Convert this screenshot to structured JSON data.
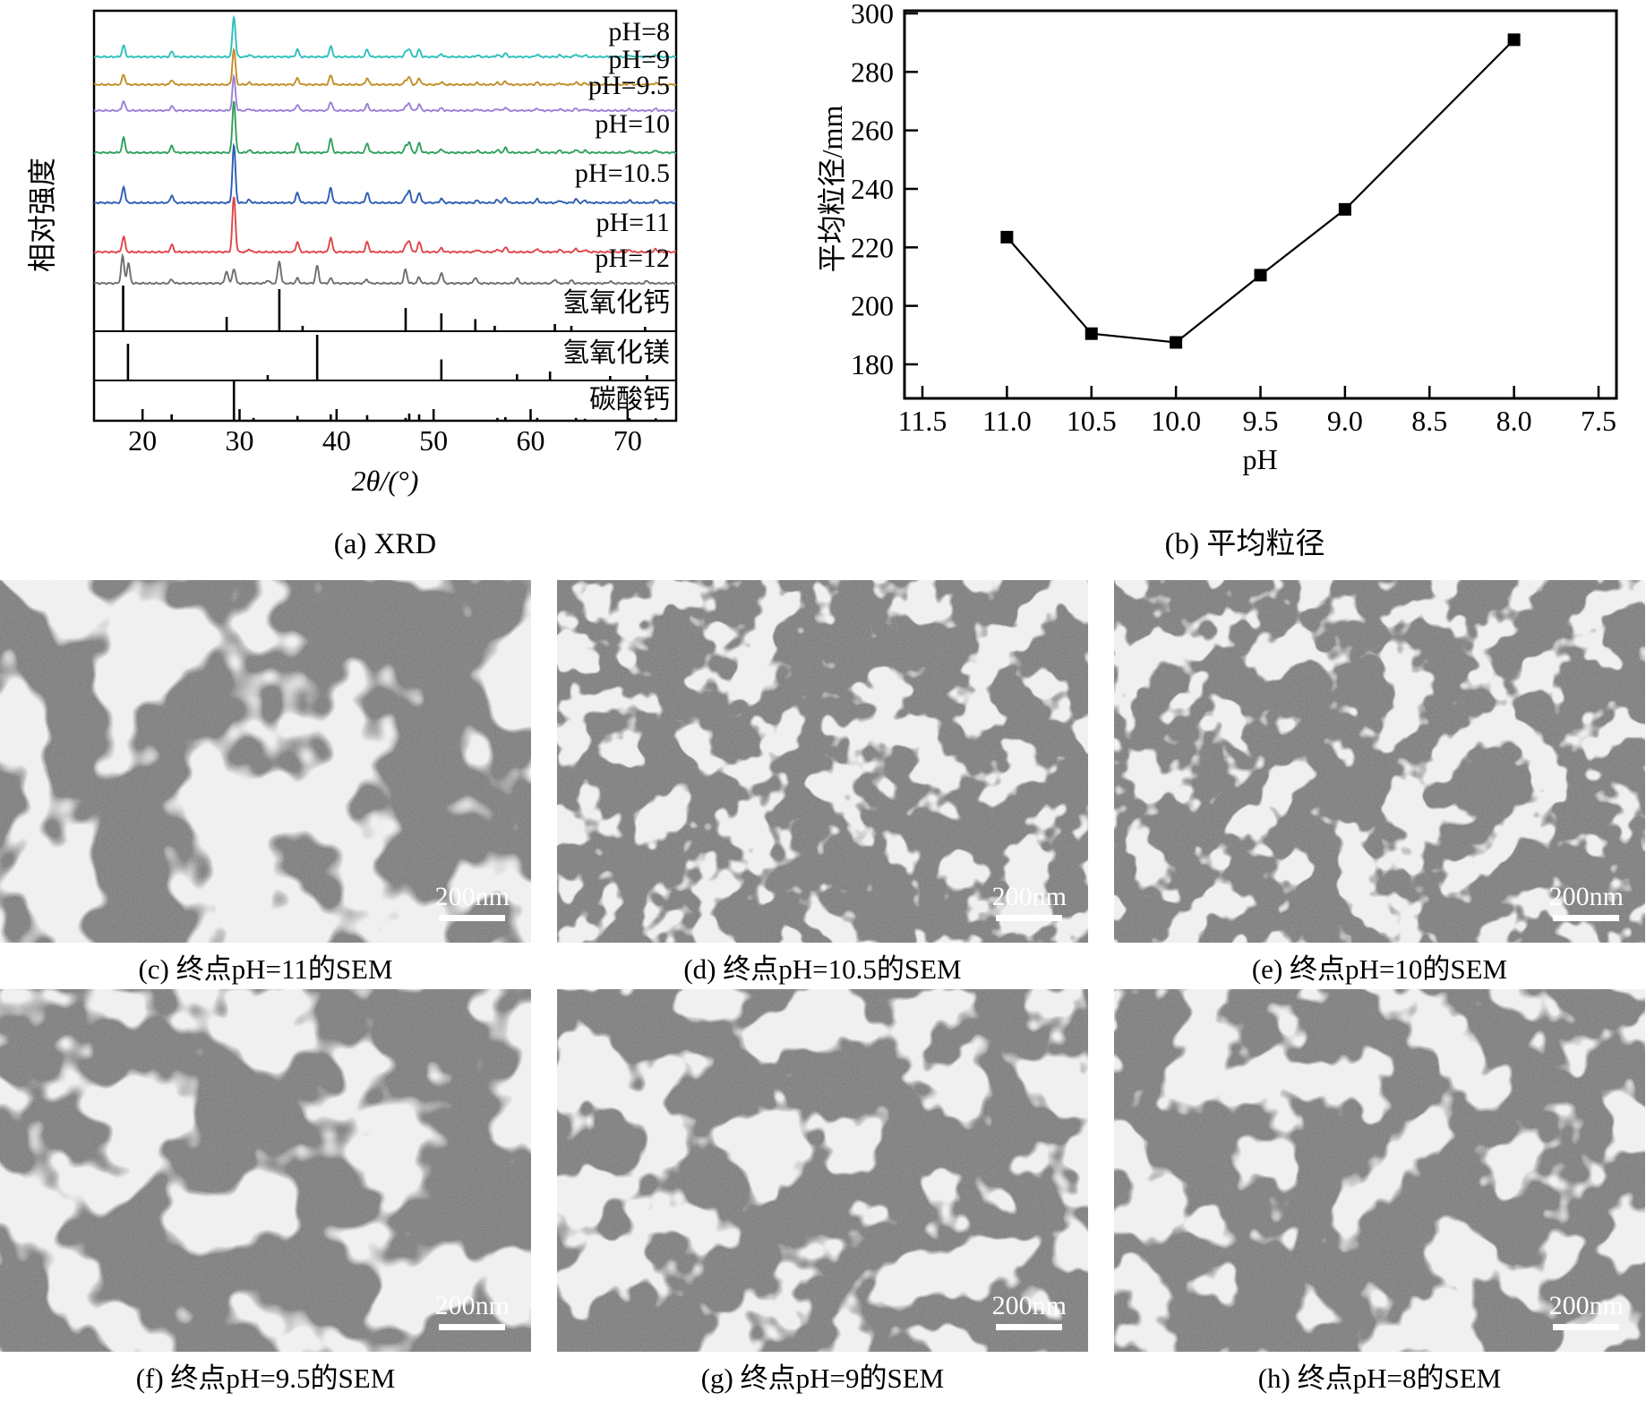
{
  "panels": {
    "a_caption": "(a) XRD",
    "b_caption": "(b) 平均粒径"
  },
  "chart_data": [
    {
      "type": "line",
      "name": "xrd-stacked-patterns",
      "title": "(a) XRD",
      "xlabel": "2θ/(°)",
      "ylabel": "相对强度",
      "xlim": [
        15,
        75
      ],
      "xticks": [
        20,
        30,
        40,
        50,
        60,
        70
      ],
      "grid": false,
      "legend_position": "right-inline",
      "common_peaks": [
        [
          18.05,
          0.28
        ],
        [
          23.02,
          0.13
        ],
        [
          29.42,
          1.0
        ],
        [
          31.0,
          0.05
        ],
        [
          35.97,
          0.18
        ],
        [
          39.4,
          0.26
        ],
        [
          43.15,
          0.18
        ],
        [
          47.12,
          0.12
        ],
        [
          47.49,
          0.2
        ],
        [
          48.51,
          0.18
        ],
        [
          50.8,
          0.07
        ],
        [
          54.5,
          0.04
        ],
        [
          56.58,
          0.05
        ],
        [
          57.4,
          0.09
        ],
        [
          60.68,
          0.06
        ],
        [
          63.0,
          0.04
        ],
        [
          64.68,
          0.06
        ],
        [
          65.6,
          0.04
        ],
        [
          70.2,
          0.04
        ],
        [
          72.9,
          0.05
        ]
      ],
      "series": [
        {
          "name": "pH=8",
          "color": "#2fbfbc"
        },
        {
          "name": "pH=9",
          "color": "#c28f28"
        },
        {
          "name": "pH=9.5",
          "color": "#9d80d6"
        },
        {
          "name": "pH=10",
          "color": "#33a05f"
        },
        {
          "name": "pH=10.5",
          "color": "#2d5fb3"
        },
        {
          "name": "pH=11",
          "color": "#e0454b"
        },
        {
          "name": "pH=12",
          "color": "#6e6e6e",
          "peaks": [
            [
              17.95,
              0.55
            ],
            [
              18.55,
              0.4
            ],
            [
              23.0,
              0.08
            ],
            [
              28.67,
              0.25
            ],
            [
              29.42,
              0.3
            ],
            [
              32.9,
              0.06
            ],
            [
              34.1,
              0.45
            ],
            [
              35.97,
              0.1
            ],
            [
              38.0,
              0.35
            ],
            [
              39.4,
              0.1
            ],
            [
              43.1,
              0.08
            ],
            [
              47.1,
              0.28
            ],
            [
              48.5,
              0.12
            ],
            [
              50.8,
              0.22
            ],
            [
              54.3,
              0.12
            ],
            [
              58.6,
              0.1
            ],
            [
              62.5,
              0.08
            ],
            [
              64.2,
              0.06
            ],
            [
              68.2,
              0.04
            ],
            [
              72.0,
              0.05
            ]
          ]
        }
      ],
      "reference_patterns": [
        {
          "name": "氢氧化钙",
          "sticks": [
            [
              18.0,
              1.0
            ],
            [
              28.67,
              0.3
            ],
            [
              34.1,
              0.92
            ],
            [
              36.5,
              0.1
            ],
            [
              47.12,
              0.5
            ],
            [
              50.8,
              0.38
            ],
            [
              54.3,
              0.25
            ],
            [
              56.3,
              0.1
            ],
            [
              62.5,
              0.14
            ],
            [
              64.2,
              0.1
            ],
            [
              71.8,
              0.08
            ]
          ]
        },
        {
          "name": "氢氧化镁",
          "sticks": [
            [
              18.5,
              0.8
            ],
            [
              32.9,
              0.1
            ],
            [
              38.0,
              1.0
            ],
            [
              50.8,
              0.45
            ],
            [
              58.6,
              0.12
            ],
            [
              62.0,
              0.18
            ],
            [
              68.2,
              0.08
            ],
            [
              72.0,
              0.1
            ]
          ]
        },
        {
          "name": "碳酸钙",
          "sticks": [
            [
              23.0,
              0.14
            ],
            [
              29.42,
              1.0
            ],
            [
              31.44,
              0.05
            ],
            [
              35.97,
              0.1
            ],
            [
              39.4,
              0.14
            ],
            [
              43.15,
              0.12
            ],
            [
              47.12,
              0.05
            ],
            [
              47.49,
              0.16
            ],
            [
              48.51,
              0.14
            ],
            [
              56.58,
              0.05
            ],
            [
              57.4,
              0.07
            ],
            [
              60.68,
              0.05
            ],
            [
              64.68,
              0.05
            ],
            [
              65.6,
              0.03
            ],
            [
              70.2,
              0.04
            ],
            [
              72.9,
              0.04
            ]
          ]
        }
      ]
    },
    {
      "type": "line",
      "name": "average-particle-size-vs-ph",
      "title": "(b) 平均粒径",
      "xlabel": "pH",
      "ylabel": "平均粒径/mm",
      "x_axis_reversed": true,
      "xtick_labels": [
        "11.5",
        "11.0",
        "10.5",
        "10.0",
        "9.5",
        "9.0",
        "8.5",
        "8.0",
        "7.5"
      ],
      "xtick_values": [
        11.5,
        11.0,
        10.5,
        10.0,
        9.5,
        9.0,
        8.5,
        8.0,
        7.5
      ],
      "ylim": [
        170,
        300
      ],
      "yticks": [
        180,
        200,
        220,
        240,
        260,
        280,
        300
      ],
      "x": [
        11.0,
        10.5,
        10.0,
        9.5,
        9.0,
        8.0
      ],
      "y": [
        223.5,
        190.5,
        187.5,
        210.5,
        233,
        291
      ],
      "marker": "square",
      "color": "#000000",
      "grid": false
    }
  ],
  "sem_images": [
    {
      "id": "c",
      "caption": "(c) 终点pH=11的SEM",
      "scale_label": "200nm"
    },
    {
      "id": "d",
      "caption": "(d) 终点pH=10.5的SEM",
      "scale_label": "200nm"
    },
    {
      "id": "e",
      "caption": "(e) 终点pH=10的SEM",
      "scale_label": "200nm"
    },
    {
      "id": "f",
      "caption": "(f) 终点pH=9.5的SEM",
      "scale_label": "200nm"
    },
    {
      "id": "g",
      "caption": "(g) 终点pH=9的SEM",
      "scale_label": "200nm"
    },
    {
      "id": "h",
      "caption": "(h) 终点pH=8的SEM",
      "scale_label": "200nm"
    }
  ]
}
